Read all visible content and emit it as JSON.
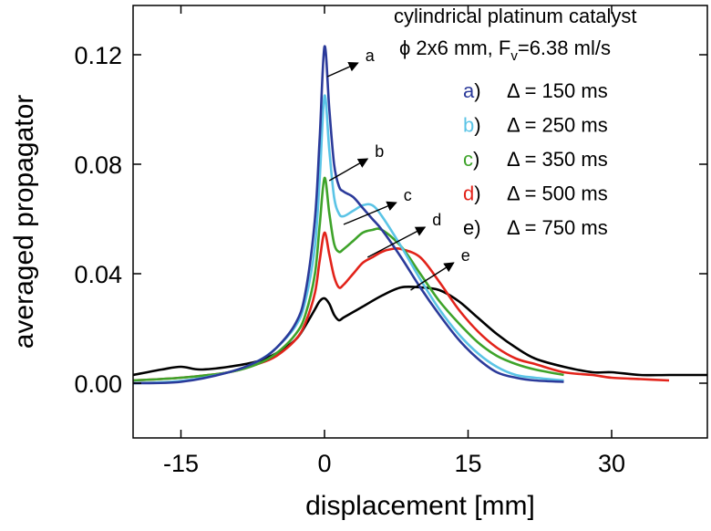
{
  "chart_data": {
    "type": "line",
    "title": "",
    "xlabel": "displacement [mm]",
    "ylabel": "averaged propagator",
    "xlim": [
      -20,
      40
    ],
    "ylim": [
      -0.02,
      0.138
    ],
    "xticks": [
      -15,
      0,
      15,
      30
    ],
    "xtick_labels": [
      "-15",
      "0",
      "15",
      "30"
    ],
    "yticks": [
      0.0,
      0.04,
      0.08,
      0.12
    ],
    "ytick_labels": [
      "0.00",
      "0.04",
      "0.08",
      "0.12"
    ],
    "grid": false,
    "legend_position": "top-right",
    "legend": {
      "heading_line1": "cylindrical platinum catalyst",
      "heading_line2_prefix": "ϕ 2x6 mm, F",
      "heading_line2_sub": "v",
      "heading_line2_suffix": "=6.38 ml/s",
      "entries": [
        {
          "key": "a",
          "close": ")",
          "text": "Δ = 150 ms",
          "key_color": "#2b3a9a"
        },
        {
          "key": "b",
          "close": ")",
          "text": "Δ = 250 ms",
          "key_color": "#5bc4e6"
        },
        {
          "key": "c",
          "close": ")",
          "text": "Δ = 350 ms",
          "key_color": "#3ea32a"
        },
        {
          "key": "d",
          "close": ")",
          "text": "Δ = 500 ms",
          "key_color": "#e2231a"
        },
        {
          "key": "e",
          "close": ")",
          "text": "Δ = 750 ms",
          "key_color": "#000000"
        }
      ]
    },
    "series": [
      {
        "name": "a",
        "color": "#2b3a9a",
        "x": [
          -20,
          -15,
          -10,
          -7,
          -5,
          -3,
          -2,
          -1,
          -0.5,
          0,
          0.5,
          1,
          1.5,
          2,
          3,
          4,
          5,
          6,
          8,
          10,
          12,
          14,
          16,
          18,
          20,
          22,
          25
        ],
        "y": [
          0.0,
          0.0005,
          0.004,
          0.008,
          0.013,
          0.022,
          0.033,
          0.06,
          0.09,
          0.123,
          0.1,
          0.08,
          0.072,
          0.07,
          0.068,
          0.064,
          0.06,
          0.056,
          0.046,
          0.035,
          0.025,
          0.016,
          0.009,
          0.004,
          0.002,
          0.001,
          0.0005
        ]
      },
      {
        "name": "b",
        "color": "#5bc4e6",
        "x": [
          -20,
          -15,
          -10,
          -7,
          -5,
          -3,
          -2,
          -1,
          -0.5,
          0,
          0.5,
          1,
          1.5,
          2,
          3,
          4,
          5,
          6,
          8,
          10,
          12,
          14,
          16,
          18,
          20,
          22,
          25
        ],
        "y": [
          0.0,
          0.0008,
          0.004,
          0.008,
          0.013,
          0.021,
          0.03,
          0.05,
          0.075,
          0.105,
          0.085,
          0.068,
          0.062,
          0.061,
          0.063,
          0.065,
          0.065,
          0.061,
          0.05,
          0.038,
          0.027,
          0.018,
          0.011,
          0.006,
          0.003,
          0.002,
          0.001
        ]
      },
      {
        "name": "c",
        "color": "#3ea32a",
        "x": [
          -20,
          -15,
          -10,
          -7,
          -5,
          -3,
          -2,
          -1,
          -0.5,
          0,
          0.5,
          1,
          1.5,
          2,
          3,
          4,
          5,
          6,
          8,
          10,
          12,
          14,
          16,
          18,
          20,
          22,
          25
        ],
        "y": [
          0.001,
          0.002,
          0.004,
          0.007,
          0.011,
          0.018,
          0.025,
          0.04,
          0.058,
          0.075,
          0.062,
          0.051,
          0.048,
          0.049,
          0.052,
          0.055,
          0.056,
          0.056,
          0.05,
          0.04,
          0.03,
          0.022,
          0.015,
          0.01,
          0.007,
          0.005,
          0.003
        ]
      },
      {
        "name": "d",
        "color": "#e2231a",
        "x": [
          -20,
          -15,
          -10,
          -7,
          -5,
          -3,
          -2,
          -1,
          -0.5,
          0,
          0.5,
          1,
          1.5,
          2,
          3,
          4,
          5,
          6,
          7,
          8,
          10,
          12,
          14,
          16,
          18,
          20,
          22,
          25,
          28,
          30,
          33,
          36
        ],
        "y": [
          0.001,
          0.002,
          0.004,
          0.007,
          0.01,
          0.016,
          0.022,
          0.033,
          0.045,
          0.055,
          0.047,
          0.039,
          0.035,
          0.036,
          0.04,
          0.044,
          0.046,
          0.048,
          0.049,
          0.049,
          0.046,
          0.037,
          0.027,
          0.019,
          0.013,
          0.009,
          0.007,
          0.004,
          0.003,
          0.002,
          0.0015,
          0.001
        ]
      },
      {
        "name": "e",
        "color": "#000000",
        "x": [
          -20,
          -17,
          -15,
          -13,
          -10,
          -7,
          -5,
          -3,
          -2,
          -1,
          -0.5,
          0,
          0.5,
          1,
          1.5,
          2,
          3,
          4,
          6,
          8,
          10,
          12,
          14,
          16,
          18,
          20,
          22,
          25,
          28,
          30,
          33,
          36,
          40
        ],
        "y": [
          0.003,
          0.005,
          0.006,
          0.005,
          0.006,
          0.008,
          0.011,
          0.016,
          0.021,
          0.027,
          0.03,
          0.031,
          0.029,
          0.025,
          0.023,
          0.024,
          0.026,
          0.028,
          0.032,
          0.035,
          0.035,
          0.034,
          0.03,
          0.024,
          0.018,
          0.013,
          0.009,
          0.006,
          0.004,
          0.004,
          0.003,
          0.003,
          0.003
        ]
      }
    ],
    "annotations": [
      {
        "label": "a",
        "series": "a",
        "from": [
          0.3,
          0.112
        ],
        "to": [
          3.5,
          0.117
        ]
      },
      {
        "label": "b",
        "series": "b",
        "from": [
          0.5,
          0.074
        ],
        "to": [
          4.5,
          0.082
        ]
      },
      {
        "label": "c",
        "series": "c",
        "from": [
          2.0,
          0.058
        ],
        "to": [
          7.5,
          0.066
        ]
      },
      {
        "label": "d",
        "series": "d",
        "from": [
          4.5,
          0.046
        ],
        "to": [
          10.5,
          0.057
        ]
      },
      {
        "label": "e",
        "series": "e",
        "from": [
          9.0,
          0.034
        ],
        "to": [
          13.5,
          0.044
        ]
      }
    ]
  }
}
